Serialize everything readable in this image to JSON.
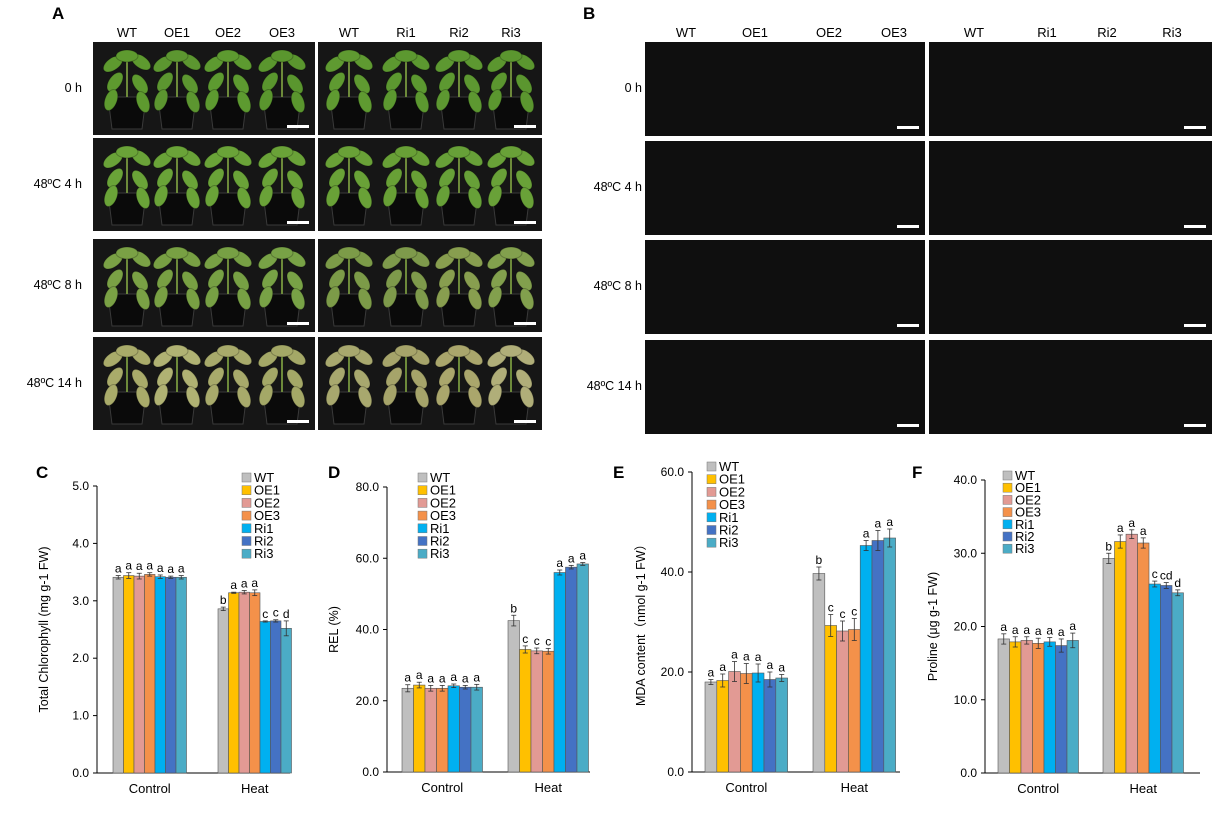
{
  "panels": {
    "A": "A",
    "B": "B",
    "C": "C",
    "D": "D",
    "E": "E",
    "F": "F"
  },
  "photo_panels": {
    "columns_left": [
      "WT",
      "OE1",
      "OE2",
      "OE3"
    ],
    "columns_right": [
      "WT",
      "Ri1",
      "Ri2",
      "Ri3"
    ],
    "rows": [
      "0 h",
      "48ºC  4 h",
      "48ºC  8 h",
      "48ºC  14 h"
    ],
    "leaf_colors": [
      [
        "#7fb44a",
        "#7fb44a",
        "#7db34b",
        "#7fb24c",
        "#80b44f",
        "#7fb44a",
        "#80b54c",
        "#7db24c"
      ],
      [
        "#86b54a",
        "#8bbb4d",
        "#5f8e3d",
        "#5b8a42",
        "#6f9b3a",
        "#7fa845",
        "#4f6c3c",
        "#6b7d47"
      ],
      [
        "#4e7133",
        "#4d7334",
        "#4f7a34",
        "#4e7535",
        "#4a6b4a",
        "#5b5a3a",
        "#5e5a3f",
        "#6e5a45"
      ],
      [
        "#b4b275",
        "#c8c39b",
        "#b1a66e",
        "#a49a61",
        "#c7c7a9",
        "#aaa56a",
        "#8e8a52",
        "#b6ac77"
      ]
    ],
    "plant_colors": [
      [
        "#5e9a2f",
        "#5c9630",
        "#5d9a30",
        "#5a962e",
        "#5f9a31",
        "#5c9830",
        "#5d9831",
        "#5b962f"
      ],
      [
        "#6aa338",
        "#6aa338",
        "#6aa338",
        "#6aa238",
        "#69a137",
        "#68a036",
        "#67a038",
        "#69a138"
      ],
      [
        "#7aa145",
        "#78a043",
        "#77a044",
        "#78a246",
        "#7c9b48",
        "#7e9a4b",
        "#889e4f",
        "#82a04d"
      ],
      [
        "#a9ab6a",
        "#b0b273",
        "#a8aa6b",
        "#a4a867",
        "#a8a86e",
        "#a6a46a",
        "#aaa66c",
        "#b0ae79"
      ]
    ]
  },
  "legend": {
    "entries": [
      "WT",
      "OE1",
      "OE2",
      "OE3",
      "Ri1",
      "Ri2",
      "Ri3"
    ],
    "colors": [
      "#bfbfbf",
      "#ffc000",
      "#e29a94",
      "#f4914a",
      "#00b0f0",
      "#4472c4",
      "#4bacc6"
    ]
  },
  "chart_data": [
    {
      "panel": "C",
      "type": "bar",
      "categories": [
        "Control",
        "Heat"
      ],
      "ylabel": "Total Chlorophyll (mg g-1 FW)",
      "ylim": [
        0,
        5
      ],
      "yticks": [
        "0.0",
        "1.0",
        "2.0",
        "3.0",
        "4.0",
        "5.0"
      ],
      "series": [
        {
          "name": "WT",
          "values": [
            3.41,
            2.86
          ],
          "errors": [
            0.03,
            0.03
          ],
          "letters": [
            "a",
            "b"
          ]
        },
        {
          "name": "OE1",
          "values": [
            3.44,
            3.14
          ],
          "errors": [
            0.05,
            0.01
          ],
          "letters": [
            "a",
            "a"
          ]
        },
        {
          "name": "OE2",
          "values": [
            3.43,
            3.15
          ],
          "errors": [
            0.05,
            0.03
          ],
          "letters": [
            "a",
            "a"
          ]
        },
        {
          "name": "OE3",
          "values": [
            3.46,
            3.14
          ],
          "errors": [
            0.03,
            0.05
          ],
          "letters": [
            "a",
            "a"
          ]
        },
        {
          "name": "Ri1",
          "values": [
            3.42,
            2.64
          ],
          "errors": [
            0.03,
            0.01
          ],
          "letters": [
            "a",
            "c"
          ]
        },
        {
          "name": "Ri2",
          "values": [
            3.41,
            2.65
          ],
          "errors": [
            0.02,
            0.02
          ],
          "letters": [
            "a",
            "c"
          ]
        },
        {
          "name": "Ri3",
          "values": [
            3.41,
            2.52
          ],
          "errors": [
            0.03,
            0.13
          ],
          "letters": [
            "a",
            "d"
          ]
        }
      ]
    },
    {
      "panel": "D",
      "type": "bar",
      "categories": [
        "Control",
        "Heat"
      ],
      "ylabel": "REL (%)",
      "ylim": [
        0,
        80
      ],
      "yticks": [
        "0.0",
        "20.0",
        "40.0",
        "60.0",
        "80.0"
      ],
      "series": [
        {
          "name": "WT",
          "values": [
            23.5,
            42.5
          ],
          "errors": [
            1.0,
            1.5
          ],
          "letters": [
            "a",
            "b"
          ]
        },
        {
          "name": "OE1",
          "values": [
            24.4,
            34.4
          ],
          "errors": [
            0.8,
            1.0
          ],
          "letters": [
            "a",
            "c"
          ]
        },
        {
          "name": "OE2",
          "values": [
            23.5,
            34.0
          ],
          "errors": [
            0.8,
            0.8
          ],
          "letters": [
            "a",
            "c"
          ]
        },
        {
          "name": "OE3",
          "values": [
            23.5,
            33.9
          ],
          "errors": [
            0.8,
            0.8
          ],
          "letters": [
            "a",
            "c"
          ]
        },
        {
          "name": "Ri1",
          "values": [
            24.2,
            56.0
          ],
          "errors": [
            0.5,
            0.7
          ],
          "letters": [
            "a",
            "a"
          ]
        },
        {
          "name": "Ri2",
          "values": [
            23.8,
            57.5
          ],
          "errors": [
            0.5,
            0.5
          ],
          "letters": [
            "a",
            "a"
          ]
        },
        {
          "name": "Ri3",
          "values": [
            23.8,
            58.4
          ],
          "errors": [
            0.8,
            0.4
          ],
          "letters": [
            "a",
            "a"
          ]
        }
      ]
    },
    {
      "panel": "E",
      "type": "bar",
      "categories": [
        "Control",
        "Heat"
      ],
      "ylabel": "MDA content（nmol g-1 FW）",
      "ylim": [
        0,
        60
      ],
      "yticks": [
        "0.0",
        "20.0",
        "40.0",
        "60.0"
      ],
      "series": [
        {
          "name": "WT",
          "values": [
            18.0,
            39.7
          ],
          "errors": [
            0.5,
            1.3
          ],
          "letters": [
            "a",
            "b"
          ]
        },
        {
          "name": "OE1",
          "values": [
            18.3,
            29.3
          ],
          "errors": [
            1.3,
            2.2
          ],
          "letters": [
            "a",
            "c"
          ]
        },
        {
          "name": "OE2",
          "values": [
            20.1,
            28.2
          ],
          "errors": [
            2.0,
            2.0
          ],
          "letters": [
            "a",
            "c"
          ]
        },
        {
          "name": "OE3",
          "values": [
            19.7,
            28.5
          ],
          "errors": [
            2.0,
            2.2
          ],
          "letters": [
            "a",
            "c"
          ]
        },
        {
          "name": "Ri1",
          "values": [
            19.8,
            45.3
          ],
          "errors": [
            1.8,
            1.0
          ],
          "letters": [
            "a",
            "a"
          ]
        },
        {
          "name": "Ri2",
          "values": [
            18.5,
            46.3
          ],
          "errors": [
            1.5,
            2.0
          ],
          "letters": [
            "a",
            "a"
          ]
        },
        {
          "name": "Ri3",
          "values": [
            18.8,
            46.8
          ],
          "errors": [
            0.7,
            1.8
          ],
          "letters": [
            "a",
            "a"
          ]
        }
      ]
    },
    {
      "panel": "F",
      "type": "bar",
      "categories": [
        "Control",
        "Heat"
      ],
      "ylabel": "Proline (μg g-1 FW)",
      "ylim": [
        0,
        40
      ],
      "yticks": [
        "0.0",
        "10.0",
        "20.0",
        "30.0",
        "40.0"
      ],
      "series": [
        {
          "name": "WT",
          "values": [
            18.3,
            29.3
          ],
          "errors": [
            0.7,
            0.7
          ],
          "letters": [
            "a",
            "b"
          ]
        },
        {
          "name": "OE1",
          "values": [
            17.9,
            31.6
          ],
          "errors": [
            0.7,
            0.9
          ],
          "letters": [
            "a",
            "a"
          ]
        },
        {
          "name": "OE2",
          "values": [
            18.1,
            32.6
          ],
          "errors": [
            0.5,
            0.6
          ],
          "letters": [
            "a",
            "a"
          ]
        },
        {
          "name": "OE3",
          "values": [
            17.7,
            31.4
          ],
          "errors": [
            0.7,
            0.7
          ],
          "letters": [
            "a",
            "a"
          ]
        },
        {
          "name": "Ri1",
          "values": [
            17.9,
            25.8
          ],
          "errors": [
            0.6,
            0.4
          ],
          "letters": [
            "a",
            "c"
          ]
        },
        {
          "name": "Ri2",
          "values": [
            17.4,
            25.6
          ],
          "errors": [
            0.9,
            0.4
          ],
          "letters": [
            "a",
            "cd"
          ]
        },
        {
          "name": "Ri3",
          "values": [
            18.1,
            24.6
          ],
          "errors": [
            1.0,
            0.4
          ],
          "letters": [
            "a",
            "d"
          ]
        }
      ]
    }
  ]
}
